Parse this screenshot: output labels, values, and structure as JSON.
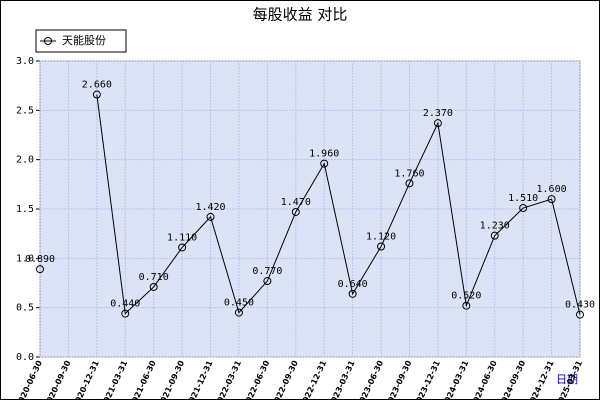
{
  "chart_data": {
    "type": "line",
    "title": "每股收益  对比",
    "x_label": "日期",
    "categories": [
      "2020-06-30",
      "2020-09-30",
      "2020-12-31",
      "2021-03-31",
      "2021-06-30",
      "2021-09-30",
      "2021-12-31",
      "2022-03-31",
      "2022-06-30",
      "2022-09-30",
      "2022-12-31",
      "2023-03-31",
      "2023-06-30",
      "2023-09-30",
      "2023-12-31",
      "2024-03-31",
      "2024-06-30",
      "2024-09-30",
      "2024-12-31",
      "2025-03-31"
    ],
    "series": [
      {
        "name": "天能股份",
        "color": "#000000",
        "values": [
          0.89,
          null,
          2.66,
          0.44,
          0.71,
          1.11,
          1.42,
          0.45,
          0.77,
          1.47,
          1.96,
          0.64,
          1.12,
          1.76,
          2.37,
          0.52,
          1.23,
          1.51,
          1.6,
          0.43
        ],
        "value_labels": [
          "0.890",
          null,
          "2.660",
          "0.440",
          "0.710",
          "1.110",
          "1.420",
          "0.450",
          "0.770",
          "1.470",
          "1.960",
          "0.640",
          "1.120",
          "1.760",
          "2.370",
          "0.520",
          "1.230",
          "1.510",
          "1.600",
          "0.430"
        ]
      }
    ],
    "ylim": [
      0,
      3
    ],
    "yticks": [
      {
        "value": 0,
        "label": "0.0"
      },
      0.5,
      {
        "value": 1,
        "label": "1.0"
      },
      1.5,
      {
        "value": 2,
        "label": "2.0"
      },
      2.5,
      {
        "value": 3,
        "label": "3.0"
      }
    ],
    "grid": true,
    "legend": "top-left"
  }
}
